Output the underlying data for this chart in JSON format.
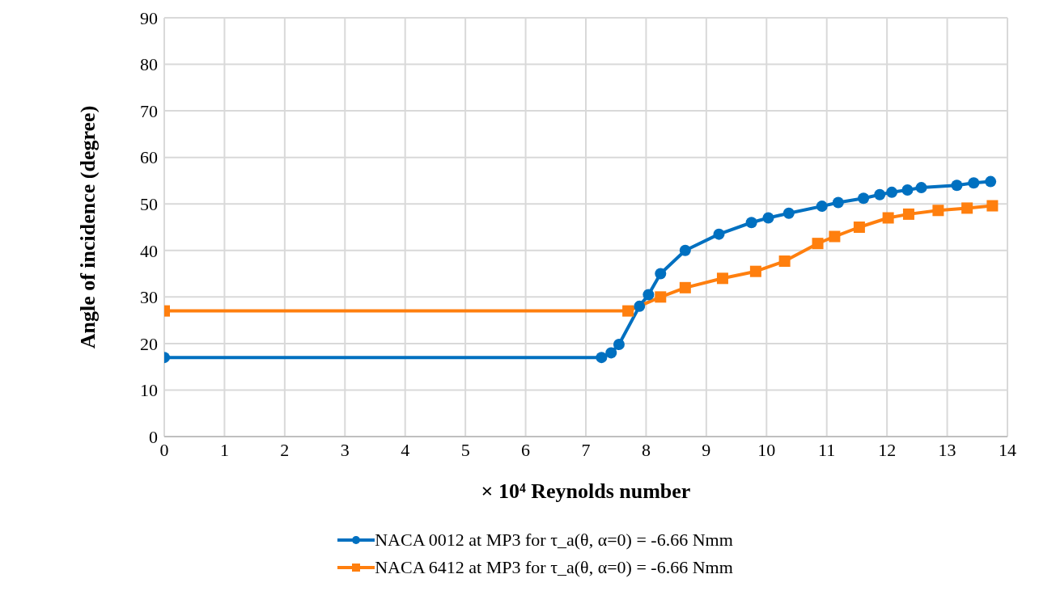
{
  "chart_data": {
    "type": "line",
    "xlabel": "× 10⁴   Reynolds number",
    "ylabel": "Angle of incidence (degree)",
    "xlim": [
      0,
      14
    ],
    "xticks": [
      0,
      1,
      2,
      3,
      4,
      5,
      6,
      7,
      8,
      9,
      10,
      11,
      12,
      13,
      14
    ],
    "ylim": [
      0,
      90
    ],
    "yticks": [
      0,
      10,
      20,
      30,
      40,
      50,
      60,
      70,
      80,
      90
    ],
    "grid": true,
    "legend": "bottom",
    "series": [
      {
        "name": "NACA 0012 at MP3 for τ_a(θ, α=0) = -6.66 Nmm",
        "color": "#0070c0",
        "marker": "circle",
        "x": [
          0,
          7.26,
          7.42,
          7.55,
          7.89,
          8.04,
          8.24,
          8.65,
          9.21,
          9.75,
          10.03,
          10.37,
          10.92,
          11.19,
          11.61,
          11.88,
          12.08,
          12.34,
          12.57,
          13.16,
          13.44,
          13.72
        ],
        "values": [
          17,
          17,
          18,
          19.8,
          28,
          30.5,
          35,
          40,
          43.5,
          46,
          47,
          48,
          49.5,
          50.3,
          51.2,
          52,
          52.5,
          53,
          53.5,
          54,
          54.5,
          54.8
        ]
      },
      {
        "name": "NACA 6412 at MP3 for τ_a(θ, α=0) = -6.66 Nmm",
        "color": "#ff7f0e",
        "marker": "square",
        "x": [
          0,
          7.7,
          8.24,
          8.65,
          9.27,
          9.82,
          10.3,
          10.85,
          11.13,
          11.54,
          12.02,
          12.36,
          12.85,
          13.33,
          13.75
        ],
        "values": [
          27,
          27,
          30,
          32,
          34,
          35.5,
          37.7,
          41.5,
          43,
          45,
          47,
          47.8,
          48.6,
          49.1,
          49.6
        ]
      }
    ]
  }
}
